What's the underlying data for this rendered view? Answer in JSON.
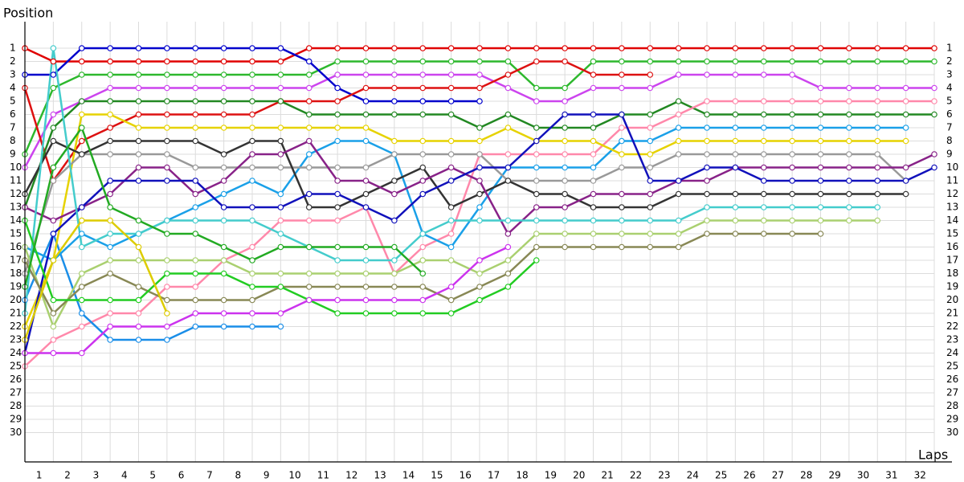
{
  "chart_data": {
    "type": "line",
    "y_label": "Position",
    "x_label": "Laps",
    "x": [
      0,
      1,
      2,
      3,
      4,
      5,
      6,
      7,
      8,
      9,
      10,
      11,
      12,
      13,
      14,
      15,
      16,
      17,
      18,
      19,
      20,
      21,
      22,
      23,
      24,
      25,
      26,
      27,
      28,
      29,
      30,
      31,
      32
    ],
    "xlim": [
      0,
      32
    ],
    "ylim": [
      -1,
      32
    ],
    "y_inverted": true,
    "grid": true,
    "xticks": [
      1,
      2,
      3,
      4,
      5,
      6,
      7,
      8,
      9,
      10,
      11,
      12,
      13,
      14,
      15,
      16,
      17,
      18,
      19,
      20,
      21,
      22,
      23,
      24,
      25,
      26,
      27,
      28,
      29,
      30,
      31,
      32
    ],
    "yticks": [
      1,
      2,
      3,
      4,
      5,
      6,
      7,
      8,
      9,
      10,
      11,
      12,
      13,
      14,
      15,
      16,
      17,
      18,
      19,
      20,
      21,
      22,
      23,
      24,
      25,
      26,
      27,
      28,
      29,
      30
    ],
    "series": [
      {
        "color": "#e00000",
        "values": [
          1,
          2,
          2,
          2,
          2,
          2,
          2,
          2,
          2,
          2,
          1,
          1,
          1,
          1,
          1,
          1,
          1,
          1,
          1,
          1,
          1,
          1,
          1,
          1,
          1,
          1,
          1,
          1,
          1,
          1,
          1,
          1,
          1
        ]
      },
      {
        "color": "#2db82d",
        "values": [
          9,
          4,
          3,
          3,
          3,
          3,
          3,
          3,
          3,
          3,
          3,
          2,
          2,
          2,
          2,
          2,
          2,
          2,
          4,
          4,
          2,
          2,
          2,
          2,
          2,
          2,
          2,
          2,
          2,
          2,
          2,
          2,
          2
        ]
      },
      {
        "color": "#cc44ee",
        "values": [
          10,
          6,
          5,
          4,
          4,
          4,
          4,
          4,
          4,
          4,
          4,
          3,
          3,
          3,
          3,
          3,
          3,
          4,
          5,
          5,
          4,
          4,
          4,
          3,
          3,
          3,
          3,
          3,
          4,
          4,
          4,
          4,
          4
        ]
      },
      {
        "color": "#0000cc",
        "values": [
          3,
          3,
          1,
          1,
          1,
          1,
          1,
          1,
          1,
          1,
          2,
          4,
          5,
          5,
          5,
          5,
          5,
          null,
          null,
          null,
          null,
          null,
          null,
          null,
          null,
          null,
          null,
          null,
          null,
          null,
          null,
          null,
          null
        ]
      },
      {
        "color": "#dd1111",
        "values": [
          4,
          11,
          8,
          7,
          6,
          6,
          6,
          6,
          6,
          5,
          5,
          5,
          4,
          4,
          4,
          4,
          4,
          3,
          2,
          2,
          3,
          3,
          3,
          null,
          null,
          null,
          null,
          null,
          null,
          null,
          null,
          null,
          null
        ]
      },
      {
        "color": "#228822",
        "values": [
          13,
          7,
          5,
          5,
          5,
          5,
          5,
          5,
          5,
          5,
          6,
          6,
          6,
          6,
          6,
          6,
          7,
          6,
          7,
          7,
          7,
          6,
          6,
          5,
          6,
          6,
          6,
          6,
          6,
          6,
          6,
          6,
          6
        ]
      },
      {
        "color": "#ff88aa",
        "values": [
          25,
          23,
          22,
          21,
          21,
          19,
          19,
          17,
          16,
          14,
          14,
          14,
          13,
          18,
          16,
          15,
          9,
          9,
          9,
          9,
          9,
          7,
          7,
          6,
          5,
          5,
          5,
          5,
          5,
          5,
          5,
          5,
          5
        ]
      },
      {
        "color": "#1a8ee8",
        "values": [
          20,
          15,
          21,
          23,
          23,
          23,
          22,
          22,
          22,
          22,
          null,
          null,
          null,
          null,
          null,
          null,
          null,
          null,
          null,
          null,
          null,
          null,
          null,
          null,
          null,
          null,
          null,
          null,
          null,
          null,
          null,
          null,
          null
        ]
      },
      {
        "color": "#1aa0e8",
        "values": [
          16,
          17,
          15,
          16,
          15,
          14,
          13,
          12,
          11,
          12,
          9,
          8,
          8,
          9,
          15,
          16,
          13,
          10,
          10,
          10,
          10,
          8,
          8,
          7,
          7,
          7,
          7,
          7,
          7,
          7,
          7,
          7,
          null
        ]
      },
      {
        "color": "#e6d200",
        "values": [
          22,
          17,
          6,
          6,
          7,
          7,
          7,
          7,
          7,
          7,
          7,
          7,
          7,
          8,
          8,
          8,
          8,
          7,
          8,
          8,
          8,
          9,
          9,
          8,
          8,
          8,
          8,
          8,
          8,
          8,
          8,
          8,
          null
        ]
      },
      {
        "color": "#999999",
        "values": [
          18,
          11,
          9,
          9,
          9,
          9,
          10,
          10,
          10,
          10,
          10,
          10,
          10,
          9,
          9,
          9,
          9,
          11,
          11,
          11,
          11,
          10,
          10,
          9,
          9,
          9,
          9,
          9,
          9,
          9,
          9,
          11,
          null
        ]
      },
      {
        "color": "#333333",
        "values": [
          12,
          8,
          9,
          8,
          8,
          8,
          8,
          9,
          8,
          8,
          13,
          13,
          12,
          11,
          10,
          13,
          12,
          11,
          12,
          12,
          13,
          13,
          13,
          12,
          12,
          12,
          12,
          12,
          12,
          12,
          12,
          12,
          null
        ]
      },
      {
        "color": "#882288",
        "values": [
          13,
          14,
          13,
          12,
          10,
          10,
          12,
          11,
          9,
          9,
          8,
          11,
          11,
          12,
          11,
          10,
          11,
          15,
          13,
          13,
          12,
          12,
          12,
          11,
          11,
          10,
          10,
          10,
          10,
          10,
          10,
          10,
          9
        ]
      },
      {
        "color": "#1111bb",
        "values": [
          24,
          15,
          13,
          11,
          11,
          11,
          11,
          13,
          13,
          13,
          12,
          12,
          13,
          14,
          12,
          11,
          10,
          10,
          8,
          6,
          6,
          6,
          11,
          11,
          10,
          10,
          11,
          11,
          11,
          11,
          11,
          11,
          10
        ]
      },
      {
        "color": "#44cccc",
        "values": [
          21,
          1,
          16,
          15,
          15,
          14,
          14,
          14,
          14,
          15,
          16,
          17,
          17,
          17,
          15,
          14,
          14,
          14,
          14,
          14,
          14,
          14,
          14,
          14,
          13,
          13,
          13,
          13,
          13,
          13,
          13,
          null,
          null
        ]
      },
      {
        "color": "#aad070",
        "values": [
          16,
          22,
          18,
          17,
          17,
          17,
          17,
          17,
          18,
          18,
          18,
          18,
          18,
          18,
          17,
          17,
          18,
          17,
          15,
          15,
          15,
          15,
          15,
          15,
          14,
          14,
          14,
          14,
          14,
          14,
          14,
          null,
          null
        ]
      },
      {
        "color": "#888855",
        "values": [
          17,
          21,
          19,
          18,
          19,
          20,
          20,
          20,
          20,
          19,
          19,
          19,
          19,
          19,
          19,
          20,
          19,
          18,
          16,
          16,
          16,
          16,
          16,
          16,
          15,
          15,
          15,
          15,
          15,
          null,
          null,
          null,
          null
        ]
      },
      {
        "color": "#22cc22",
        "values": [
          14,
          20,
          20,
          20,
          20,
          18,
          18,
          18,
          19,
          19,
          20,
          21,
          21,
          21,
          21,
          21,
          20,
          19,
          17,
          null,
          null,
          null,
          null,
          null,
          null,
          null,
          null,
          null,
          null,
          null,
          null,
          null,
          null
        ]
      },
      {
        "color": "#cc33ee",
        "values": [
          24,
          24,
          24,
          22,
          22,
          22,
          21,
          21,
          21,
          21,
          20,
          20,
          20,
          20,
          20,
          19,
          17,
          16,
          null,
          null,
          null,
          null,
          null,
          null,
          null,
          null,
          null,
          null,
          null,
          null,
          null,
          null,
          null
        ]
      },
      {
        "color": "#22aa22",
        "values": [
          19,
          10,
          7,
          13,
          14,
          15,
          15,
          16,
          17,
          16,
          16,
          16,
          16,
          16,
          18,
          null,
          null,
          null,
          null,
          null,
          null,
          null,
          null,
          null,
          null,
          null,
          null,
          null,
          null,
          null,
          null,
          null,
          null
        ]
      },
      {
        "color": "#ddcc00",
        "values": [
          23,
          17,
          14,
          14,
          16,
          21,
          null,
          null,
          null,
          null,
          null,
          null,
          null,
          null,
          null,
          null,
          null,
          null,
          null,
          null,
          null,
          null,
          null,
          null,
          null,
          null,
          null,
          null,
          null,
          null,
          null,
          null,
          null
        ]
      }
    ]
  }
}
